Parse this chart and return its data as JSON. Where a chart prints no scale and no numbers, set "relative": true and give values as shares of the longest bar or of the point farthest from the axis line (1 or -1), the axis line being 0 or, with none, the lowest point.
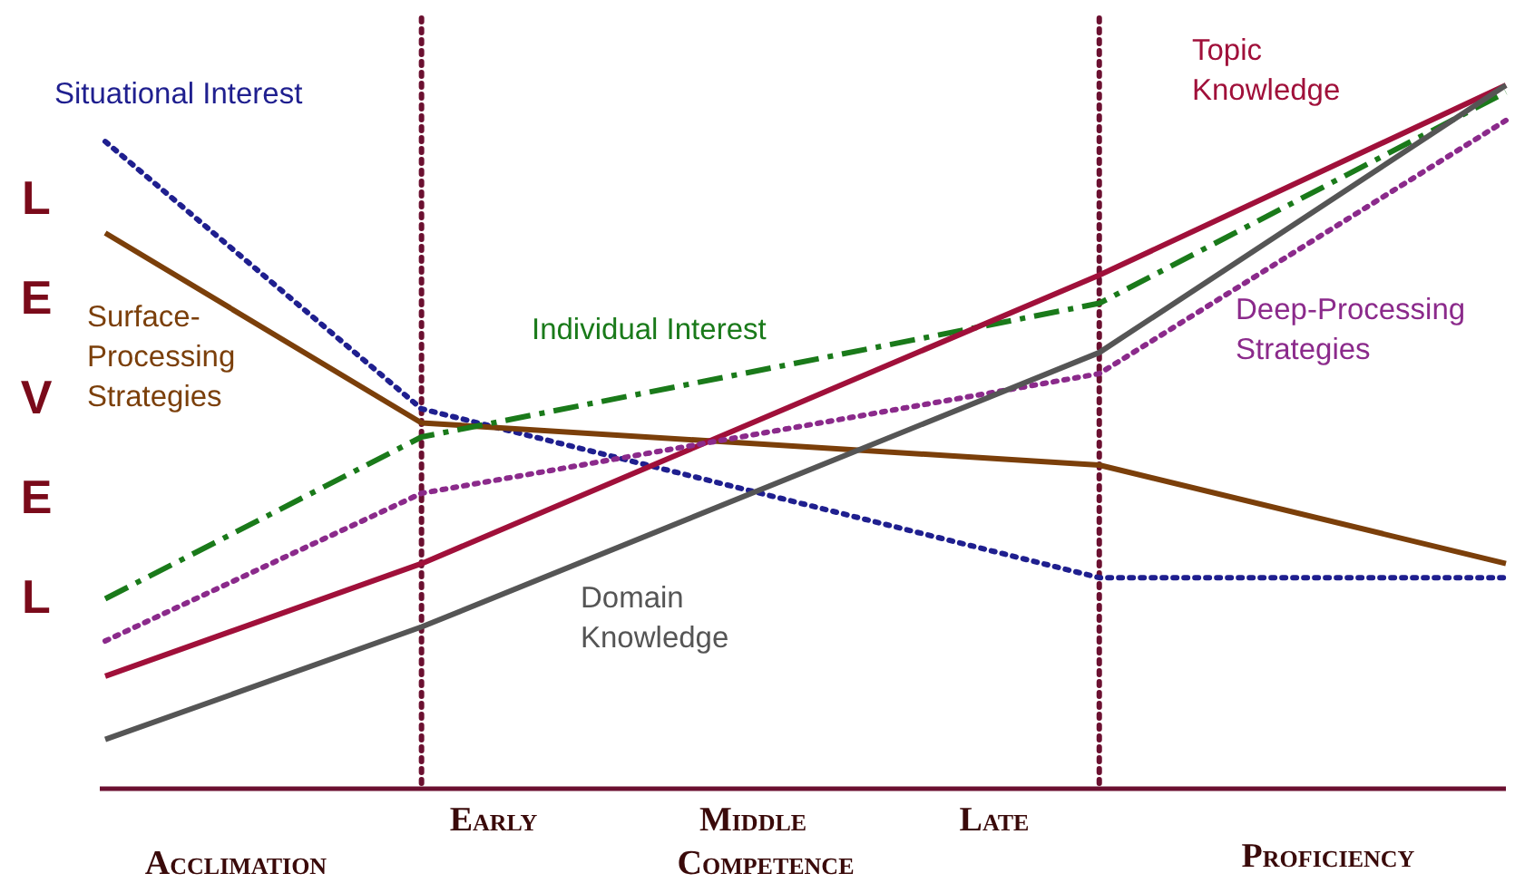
{
  "chart_data": {
    "type": "line",
    "relative": true,
    "ylabel": "LEVEL",
    "categories": [
      null,
      null,
      null,
      null,
      null,
      null,
      null,
      null,
      null,
      null,
      null,
      null,
      null,
      null,
      null,
      null,
      null,
      null,
      null,
      null,
      null,
      null,
      null,
      null,
      null,
      null,
      null,
      null,
      null,
      null,
      null,
      null
    ],
    "series": [
      {
        "name": "Situational Interest",
        "color": "#1f1f8f",
        "line_style": "dotted",
        "values": [
          0.92,
          null,
          null,
          null,
          null,
          null,
          null,
          0.54,
          null,
          null,
          null,
          null,
          null,
          null,
          null,
          null,
          null,
          null,
          null,
          null,
          null,
          null,
          0.3,
          null,
          null,
          null,
          null,
          null,
          null,
          null,
          null,
          0.3
        ]
      },
      {
        "name": "Surface-Processing Strategies",
        "color": "#7b3f0a",
        "line_style": "solid",
        "values": [
          0.79,
          null,
          null,
          null,
          null,
          null,
          null,
          0.52,
          null,
          null,
          null,
          null,
          null,
          null,
          null,
          null,
          null,
          null,
          null,
          null,
          null,
          null,
          0.46,
          null,
          null,
          null,
          null,
          null,
          null,
          null,
          null,
          0.32
        ]
      },
      {
        "name": "Individual Interest",
        "color": "#1a7a1a",
        "line_style": "dashed",
        "values": [
          0.27,
          null,
          null,
          null,
          null,
          null,
          null,
          0.5,
          null,
          null,
          null,
          null,
          null,
          null,
          null,
          null,
          null,
          null,
          null,
          null,
          null,
          null,
          0.69,
          null,
          null,
          null,
          null,
          null,
          null,
          null,
          null,
          0.99
        ]
      },
      {
        "name": "Topic Knowledge",
        "color": "#a0103a",
        "line_style": "solid",
        "values": [
          0.16,
          null,
          null,
          null,
          null,
          null,
          null,
          0.32,
          null,
          null,
          null,
          null,
          null,
          null,
          null,
          null,
          null,
          null,
          null,
          null,
          null,
          null,
          0.73,
          null,
          null,
          null,
          null,
          null,
          null,
          null,
          null,
          1
        ]
      },
      {
        "name": "Deep-Processing Strategies",
        "color": "#8b2a8b",
        "line_style": "dotted",
        "values": [
          0.21,
          null,
          null,
          null,
          null,
          null,
          null,
          0.42,
          null,
          null,
          null,
          null,
          null,
          null,
          null,
          null,
          null,
          null,
          null,
          null,
          null,
          null,
          0.59,
          null,
          null,
          null,
          null,
          null,
          null,
          null,
          null,
          0.95
        ]
      },
      {
        "name": "Domain Knowledge",
        "color": "#555555",
        "line_style": "solid",
        "values": [
          0.07,
          null,
          null,
          null,
          null,
          null,
          null,
          0.23,
          null,
          null,
          null,
          null,
          null,
          null,
          null,
          null,
          null,
          null,
          null,
          null,
          null,
          null,
          0.62,
          null,
          null,
          null,
          null,
          null,
          null,
          null,
          null,
          1
        ]
      }
    ],
    "annotations": [
      "Early",
      "Middle",
      "Late",
      "Acclimation",
      "Competence",
      "Proficiency"
    ]
  }
}
